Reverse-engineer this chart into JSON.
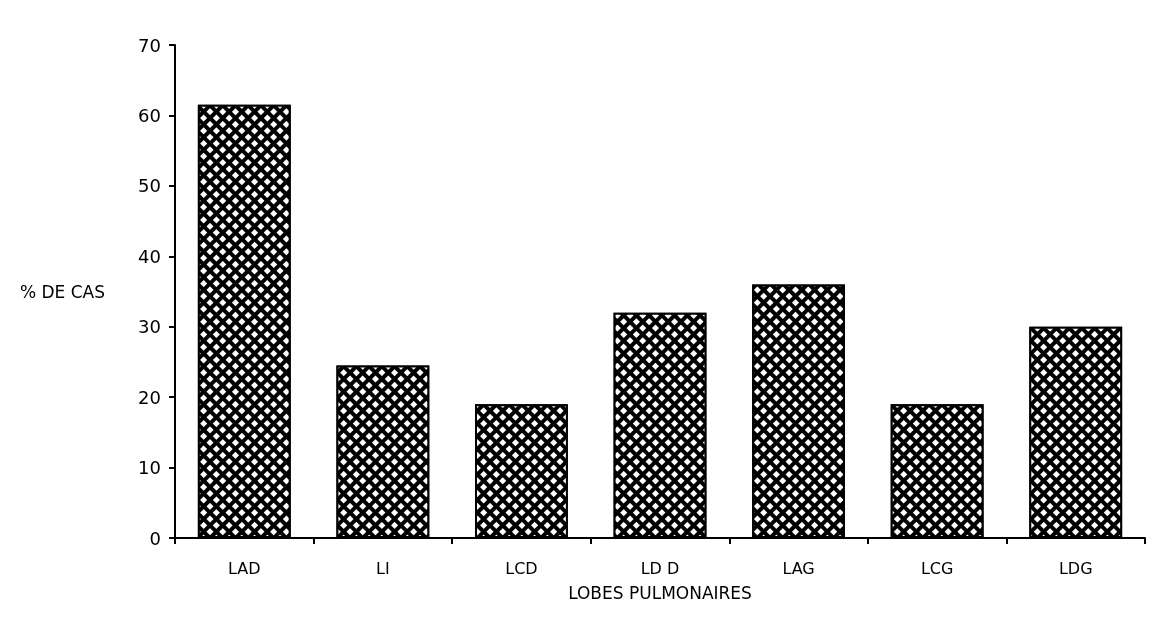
{
  "chart_data": {
    "type": "bar",
    "xlabel": "LOBES PULMONAIRES",
    "ylabel": "% DE CAS",
    "categories": [
      "LAD",
      "LI",
      "LCD",
      "LD D",
      "LAG",
      "LCG",
      "LDG"
    ],
    "values": [
      61.5,
      24.5,
      19,
      32,
      36,
      19,
      30
    ],
    "color": "#000000",
    "ylim": [
      0,
      70
    ],
    "yticks": [
      0,
      10,
      20,
      30,
      40,
      50,
      60,
      70
    ],
    "grid": false
  }
}
